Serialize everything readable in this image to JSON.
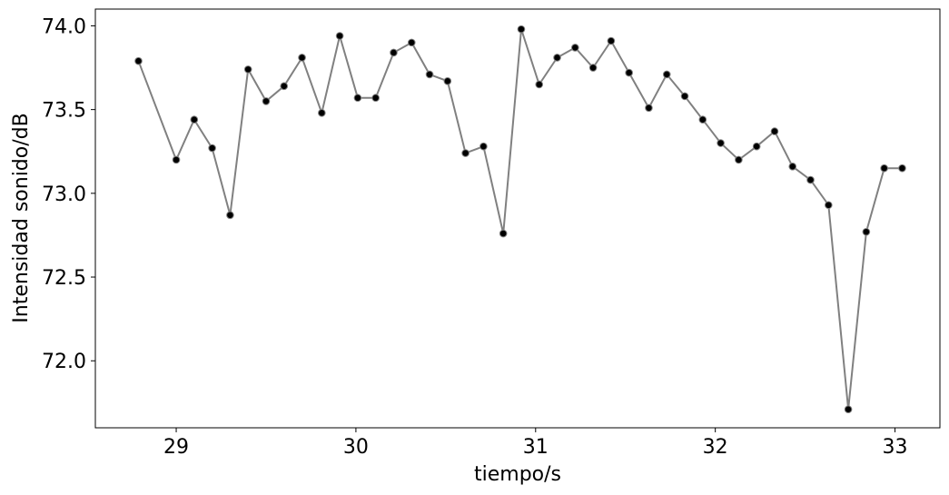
{
  "chart_data": {
    "type": "line",
    "title": "",
    "xlabel": "tiempo/s",
    "ylabel": "Intensidad sonido/dB",
    "xlim": [
      28.55,
      33.25
    ],
    "ylim": [
      71.6,
      74.1
    ],
    "x_ticks": [
      29,
      30,
      31,
      32,
      33
    ],
    "x_tick_labels": [
      "29",
      "30",
      "31",
      "32",
      "33"
    ],
    "y_ticks": [
      72.0,
      72.5,
      73.0,
      73.5,
      74.0
    ],
    "y_tick_labels": [
      "72.0",
      "72.5",
      "73.0",
      "73.5",
      "74.0"
    ],
    "grid": false,
    "line_color": "#808080",
    "marker_color": "#000000",
    "series": [
      {
        "x": [
          28.79,
          29.0,
          29.1,
          29.2,
          29.3,
          29.4,
          29.5,
          29.6,
          29.7,
          29.81,
          29.91,
          30.01,
          30.11,
          30.21,
          30.31,
          30.41,
          30.51,
          30.61,
          30.71,
          30.82,
          30.92,
          31.02,
          31.12,
          31.22,
          31.32,
          31.42,
          31.52,
          31.63,
          31.73,
          31.83,
          31.93,
          32.03,
          32.13,
          32.23,
          32.33,
          32.43,
          32.53,
          32.63,
          32.74,
          32.84,
          32.94,
          33.04
        ],
        "y": [
          73.79,
          73.2,
          73.44,
          73.27,
          72.87,
          73.74,
          73.55,
          73.64,
          73.81,
          73.48,
          73.94,
          73.57,
          73.57,
          73.84,
          73.9,
          73.71,
          73.67,
          73.24,
          73.28,
          72.76,
          73.98,
          73.65,
          73.81,
          73.87,
          73.75,
          73.91,
          73.72,
          73.51,
          73.71,
          73.58,
          73.44,
          73.3,
          73.2,
          73.28,
          73.37,
          73.16,
          73.08,
          72.93,
          71.71,
          72.77,
          73.15,
          73.15
        ]
      }
    ]
  }
}
